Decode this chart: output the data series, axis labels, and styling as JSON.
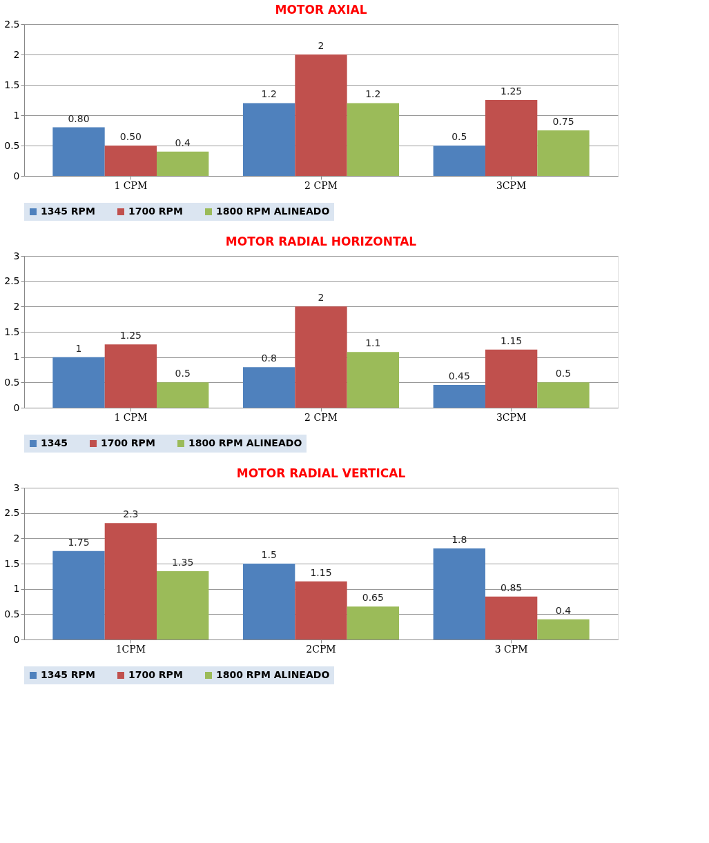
{
  "chart_data": [
    {
      "type": "bar",
      "title": "MOTOR AXIAL",
      "categories": [
        "1 CPM",
        "2 CPM",
        "3CPM"
      ],
      "ylim": [
        0,
        2.5
      ],
      "yticks": [
        0,
        0.5,
        1,
        1.5,
        2,
        2.5
      ],
      "grid": "y",
      "legend": "bottom",
      "series": [
        {
          "name": "1345 RPM",
          "color": "#4f81bd",
          "values": [
            0.8,
            1.2,
            0.5
          ],
          "value_labels": [
            "0.80",
            "1.2",
            "0.5"
          ]
        },
        {
          "name": "1700 RPM",
          "color": "#c0504d",
          "values": [
            0.5,
            2,
            1.25
          ],
          "value_labels": [
            "0.50",
            "2",
            "1.25"
          ]
        },
        {
          "name": "1800 RPM ALINEADO",
          "color": "#9bbb59",
          "values": [
            0.4,
            1.2,
            0.75
          ],
          "value_labels": [
            "0.4",
            "1.2",
            "0.75"
          ]
        }
      ]
    },
    {
      "type": "bar",
      "title": "MOTOR RADIAL HORIZONTAL",
      "categories": [
        "1 CPM",
        "2 CPM",
        "3CPM"
      ],
      "ylim": [
        0,
        3
      ],
      "yticks": [
        0,
        0.5,
        1,
        1.5,
        2,
        2.5,
        3
      ],
      "grid": "y",
      "legend": "bottom",
      "series": [
        {
          "name": "1345",
          "color": "#4f81bd",
          "values": [
            1,
            0.8,
            0.45
          ],
          "value_labels": [
            "1",
            "0.8",
            "0.45"
          ]
        },
        {
          "name": "1700 RPM",
          "color": "#c0504d",
          "values": [
            1.25,
            2,
            1.15
          ],
          "value_labels": [
            "1.25",
            "2",
            "1.15"
          ]
        },
        {
          "name": "1800 RPM ALINEADO",
          "color": "#9bbb59",
          "values": [
            0.5,
            1.1,
            0.5
          ],
          "value_labels": [
            "0.5",
            "1.1",
            "0.5"
          ]
        }
      ]
    },
    {
      "type": "bar",
      "title": "MOTOR RADIAL VERTICAL",
      "categories": [
        "1CPM",
        "2CPM",
        "3 CPM"
      ],
      "ylim": [
        0,
        3
      ],
      "yticks": [
        0,
        0.5,
        1,
        1.5,
        2,
        2.5,
        3
      ],
      "grid": "y",
      "legend": "bottom",
      "series": [
        {
          "name": "1345 RPM",
          "color": "#4f81bd",
          "values": [
            1.75,
            1.5,
            1.8
          ],
          "value_labels": [
            "1.75",
            "1.5",
            "1.8"
          ]
        },
        {
          "name": "1700 RPM",
          "color": "#c0504d",
          "values": [
            2.3,
            1.15,
            0.85
          ],
          "value_labels": [
            "2.3",
            "1.15",
            "0.85"
          ]
        },
        {
          "name": "1800 RPM ALINEADO",
          "color": "#9bbb59",
          "values": [
            1.35,
            0.65,
            0.4
          ],
          "value_labels": [
            "1.35",
            "0.65",
            "0.4"
          ]
        }
      ]
    }
  ]
}
